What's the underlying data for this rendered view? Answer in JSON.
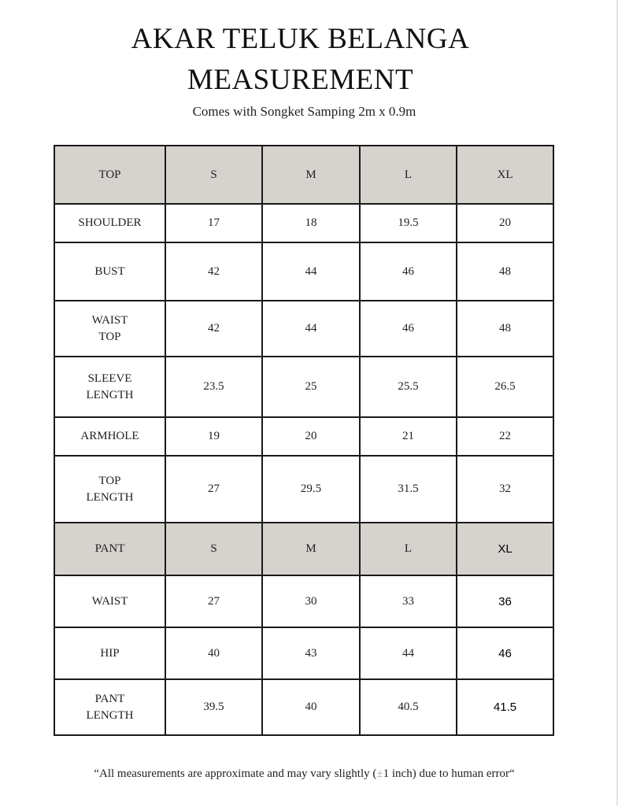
{
  "title_line1": "AKAR TELUK BELANGA",
  "title_line2": "MEASUREMENT",
  "subtitle": "Comes with Songket Samping 2m x 0.9m",
  "header_fill": "#d6d2cd",
  "top_table": {
    "headers": [
      "TOP",
      "S",
      "M",
      "L",
      "XL"
    ],
    "rows": [
      {
        "label": [
          "SHOULDER"
        ],
        "values": [
          "17",
          "18",
          "19.5",
          "20"
        ]
      },
      {
        "label": [
          "BUST"
        ],
        "values": [
          "42",
          "44",
          "46",
          "48"
        ]
      },
      {
        "label": [
          "WAIST",
          "TOP"
        ],
        "values": [
          "42",
          "44",
          "46",
          "48"
        ]
      },
      {
        "label": [
          "SLEEVE",
          "LENGTH"
        ],
        "values": [
          "23.5",
          "25",
          "25.5",
          "26.5"
        ]
      },
      {
        "label": [
          "ARMHOLE"
        ],
        "values": [
          "19",
          "20",
          "21",
          "22"
        ]
      },
      {
        "label": [
          "TOP",
          "LENGTH"
        ],
        "values": [
          "27",
          "29.5",
          "31.5",
          "32"
        ]
      }
    ]
  },
  "pant_table": {
    "headers": [
      "PANT",
      "S",
      "M",
      "L",
      "XL"
    ],
    "rows": [
      {
        "label": [
          "WAIST"
        ],
        "values": [
          "27",
          "30",
          "33",
          "36"
        ]
      },
      {
        "label": [
          "HIP"
        ],
        "values": [
          "40",
          "43",
          "44",
          "46"
        ]
      },
      {
        "label": [
          "PANT",
          "LENGTH"
        ],
        "values": [
          "39.5",
          "40",
          "40.5",
          "41.5"
        ]
      }
    ]
  },
  "footer": {
    "before": "“All measurements are approximate and may vary slightly (",
    "pm": "±",
    "after": "1 inch) due to human error“"
  }
}
